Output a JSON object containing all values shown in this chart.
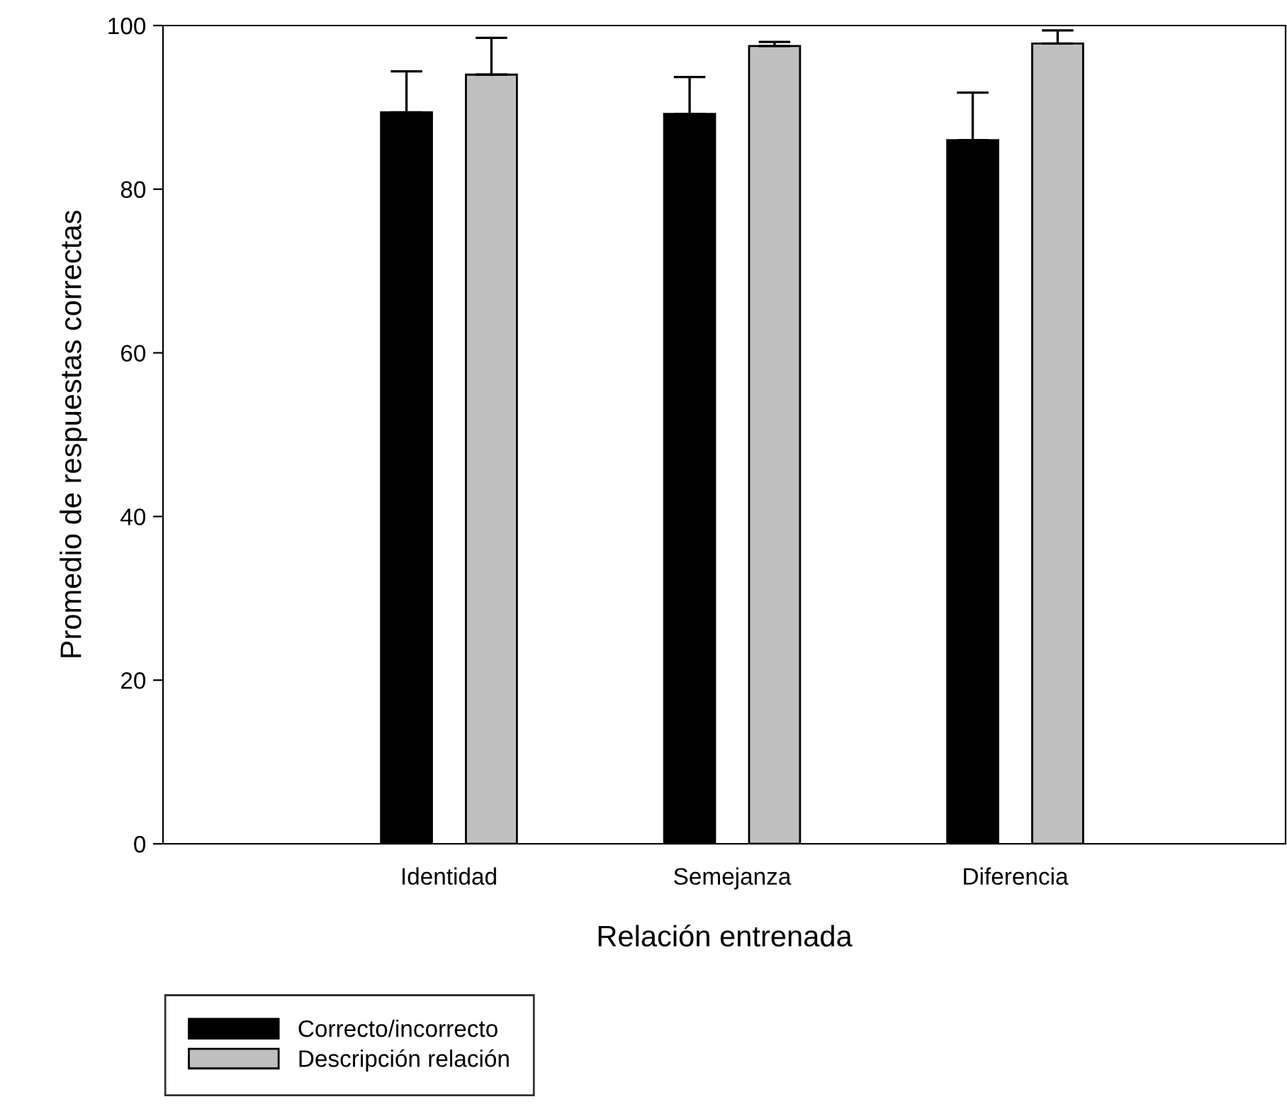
{
  "chart_data": {
    "type": "bar",
    "xlabel": "Relación entrenada",
    "ylabel": "Promedio de respuestas correctas",
    "categories": [
      "Identidad",
      "Semejanza",
      "Diferencia"
    ],
    "series": [
      {
        "name": "Correcto/incorrecto",
        "color": "#000000",
        "values": [
          89.4,
          89.2,
          86.0
        ],
        "errors": [
          [
            89.4,
            94.4
          ],
          [
            89.2,
            93.7
          ],
          [
            86.0,
            91.8
          ]
        ]
      },
      {
        "name": "Descripción relación",
        "color": "#c0c0c0",
        "values": [
          94.0,
          97.5,
          97.8
        ],
        "errors": [
          [
            94.0,
            98.5
          ],
          [
            97.5,
            98.0
          ],
          [
            97.8,
            99.4
          ]
        ]
      }
    ],
    "ylim": [
      0,
      100
    ],
    "yticks": [
      0,
      20,
      40,
      60,
      80,
      100
    ],
    "grid": false,
    "legend": "bottom left"
  }
}
